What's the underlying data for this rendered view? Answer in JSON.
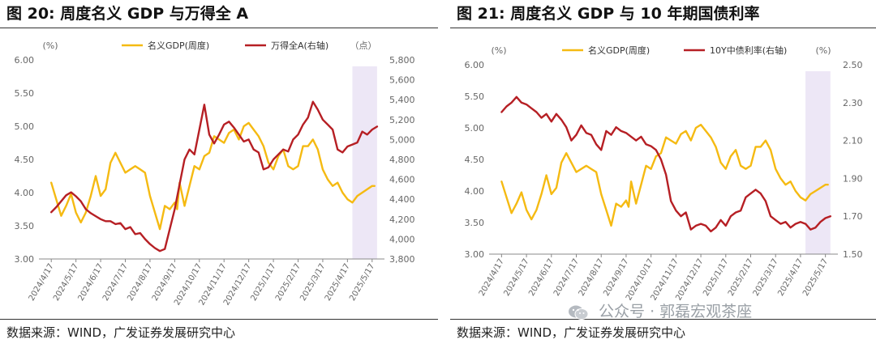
{
  "colors": {
    "gdp": "#F5BA12",
    "other": "#B61F24",
    "shade": "#EDE7F6",
    "axis": "#888888",
    "text": "#666666"
  },
  "watermark": {
    "text": "公众号 · 郭磊宏观茶座",
    "icon": "wechat-icon"
  },
  "chart_data": [
    {
      "type": "line",
      "title": "图 20: 周度名义 GDP 与万得全 A",
      "source": "数据来源：WIND，广发证券发展研究中心",
      "left_unit": "(%)",
      "right_unit": "（点）",
      "x_ticks": [
        "2024/4/17",
        "2024/5/17",
        "2024/6/17",
        "2024/7/17",
        "2024/8/17",
        "2024/9/17",
        "2024/10/17",
        "2024/11/17",
        "2024/12/17",
        "2025/1/17",
        "2025/2/17",
        "2025/3/17",
        "2025/4/17",
        "2025/5/17"
      ],
      "ylim_left": [
        3.0,
        6.0
      ],
      "y_ticks_left": [
        "3.00",
        "3.50",
        "4.00",
        "4.50",
        "5.00",
        "5.50",
        "6.00"
      ],
      "ylim_right": [
        3800,
        5800
      ],
      "y_ticks_right": [
        "3,800",
        "4,000",
        "4,200",
        "4,400",
        "4,600",
        "4,800",
        "5,000",
        "5,200",
        "5,400",
        "5,600",
        "5,800"
      ],
      "shade_range": [
        12.2,
        13.2
      ],
      "series": [
        {
          "name": "名义GDP(周度)",
          "axis": "left",
          "color": "#F5BA12",
          "x": [
            0,
            0.2,
            0.4,
            0.6,
            0.8,
            1.0,
            1.2,
            1.4,
            1.6,
            1.8,
            2.0,
            2.2,
            2.4,
            2.6,
            2.8,
            3.0,
            3.2,
            3.4,
            3.6,
            3.8,
            4.0,
            4.2,
            4.4,
            4.6,
            4.8,
            5.0,
            5.1,
            5.2,
            5.4,
            5.6,
            5.8,
            6.0,
            6.2,
            6.4,
            6.6,
            6.8,
            7.0,
            7.2,
            7.4,
            7.6,
            7.8,
            8.0,
            8.2,
            8.4,
            8.6,
            8.8,
            9.0,
            9.2,
            9.4,
            9.6,
            9.8,
            10.0,
            10.2,
            10.4,
            10.6,
            10.8,
            11.0,
            11.2,
            11.4,
            11.6,
            11.8,
            12.0,
            12.2,
            12.4,
            12.6,
            12.8,
            13.0,
            13.1
          ],
          "values": [
            4.15,
            3.9,
            3.65,
            3.8,
            3.98,
            3.7,
            3.55,
            3.7,
            3.95,
            4.25,
            3.95,
            4.05,
            4.45,
            4.6,
            4.45,
            4.3,
            4.35,
            4.4,
            4.35,
            4.3,
            3.95,
            3.7,
            3.45,
            3.8,
            3.75,
            3.85,
            3.75,
            4.15,
            3.8,
            4.1,
            4.4,
            4.35,
            4.55,
            4.6,
            4.85,
            4.8,
            4.75,
            4.9,
            4.95,
            4.8,
            5.0,
            5.05,
            4.95,
            4.85,
            4.7,
            4.45,
            4.35,
            4.55,
            4.65,
            4.4,
            4.35,
            4.4,
            4.7,
            4.7,
            4.8,
            4.65,
            4.35,
            4.2,
            4.1,
            4.15,
            4.0,
            3.9,
            3.85,
            3.95,
            4.0,
            4.05,
            4.1,
            4.1
          ]
        },
        {
          "name": "万得全A(右轴)",
          "axis": "right",
          "color": "#B61F24",
          "x": [
            0,
            0.2,
            0.4,
            0.6,
            0.8,
            1.0,
            1.2,
            1.4,
            1.6,
            1.8,
            2.0,
            2.2,
            2.4,
            2.6,
            2.8,
            3.0,
            3.2,
            3.4,
            3.6,
            3.8,
            4.0,
            4.2,
            4.4,
            4.6,
            4.8,
            5.0,
            5.2,
            5.4,
            5.6,
            5.8,
            6.0,
            6.2,
            6.4,
            6.6,
            6.8,
            7.0,
            7.2,
            7.4,
            7.6,
            7.8,
            8.0,
            8.2,
            8.4,
            8.6,
            8.8,
            9.0,
            9.2,
            9.4,
            9.6,
            9.8,
            10.0,
            10.2,
            10.4,
            10.6,
            10.8,
            11.0,
            11.2,
            11.4,
            11.6,
            11.8,
            12.0,
            12.2,
            12.4,
            12.6,
            12.8,
            13.0,
            13.2
          ],
          "values": [
            4270,
            4320,
            4380,
            4440,
            4470,
            4430,
            4380,
            4300,
            4260,
            4230,
            4200,
            4180,
            4180,
            4150,
            4160,
            4100,
            4120,
            4050,
            4060,
            4000,
            3950,
            3910,
            3880,
            3900,
            4100,
            4300,
            4550,
            4800,
            4900,
            4850,
            5100,
            5350,
            5050,
            4960,
            5050,
            5150,
            5180,
            5120,
            5050,
            4980,
            5000,
            4900,
            4870,
            4700,
            4720,
            4800,
            4850,
            4900,
            4880,
            5000,
            5050,
            5150,
            5220,
            5380,
            5300,
            5200,
            5150,
            5100,
            4900,
            4870,
            4930,
            4950,
            4970,
            5080,
            5050,
            5100,
            5130
          ]
        }
      ]
    },
    {
      "type": "line",
      "title": "图 21: 周度名义 GDP 与 10 年期国债利率",
      "source": "数据来源：WIND，广发证券发展研究中心",
      "left_unit": "(%)",
      "right_unit": "(%)",
      "x_ticks": [
        "2024/4/17",
        "2024/5/17",
        "2024/6/17",
        "2024/7/17",
        "2024/8/17",
        "2024/9/17",
        "2024/10/17",
        "2024/11/17",
        "2024/12/17",
        "2025/1/17",
        "2025/2/17",
        "2025/3/17",
        "2025/4/17",
        "2025/5/17"
      ],
      "ylim_left": [
        3.0,
        6.0
      ],
      "y_ticks_left": [
        "3.00",
        "3.50",
        "4.00",
        "4.50",
        "5.00",
        "5.50",
        "6.00"
      ],
      "ylim_right": [
        1.5,
        2.5
      ],
      "y_ticks_right": [
        "1.50",
        "1.70",
        "1.90",
        "2.10",
        "2.30",
        "2.50"
      ],
      "shade_range": [
        12.2,
        13.2
      ],
      "series": [
        {
          "name": "名义GDP(周度)",
          "axis": "left",
          "color": "#F5BA12",
          "x": [
            0,
            0.2,
            0.4,
            0.6,
            0.8,
            1.0,
            1.2,
            1.4,
            1.6,
            1.8,
            2.0,
            2.2,
            2.4,
            2.6,
            2.8,
            3.0,
            3.2,
            3.4,
            3.6,
            3.8,
            4.0,
            4.2,
            4.4,
            4.6,
            4.8,
            5.0,
            5.1,
            5.2,
            5.4,
            5.6,
            5.8,
            6.0,
            6.2,
            6.4,
            6.6,
            6.8,
            7.0,
            7.2,
            7.4,
            7.6,
            7.8,
            8.0,
            8.2,
            8.4,
            8.6,
            8.8,
            9.0,
            9.2,
            9.4,
            9.6,
            9.8,
            10.0,
            10.2,
            10.4,
            10.6,
            10.8,
            11.0,
            11.2,
            11.4,
            11.6,
            11.8,
            12.0,
            12.2,
            12.4,
            12.6,
            12.8,
            13.0,
            13.1
          ],
          "values": [
            4.15,
            3.9,
            3.65,
            3.8,
            3.98,
            3.7,
            3.55,
            3.7,
            3.95,
            4.25,
            3.95,
            4.05,
            4.45,
            4.6,
            4.45,
            4.3,
            4.35,
            4.4,
            4.35,
            4.3,
            3.95,
            3.7,
            3.45,
            3.8,
            3.75,
            3.85,
            3.75,
            4.15,
            3.8,
            4.1,
            4.4,
            4.35,
            4.55,
            4.6,
            4.85,
            4.8,
            4.75,
            4.9,
            4.95,
            4.8,
            5.0,
            5.05,
            4.95,
            4.85,
            4.7,
            4.45,
            4.35,
            4.55,
            4.65,
            4.4,
            4.35,
            4.4,
            4.7,
            4.7,
            4.8,
            4.65,
            4.35,
            4.2,
            4.1,
            4.15,
            4.0,
            3.9,
            3.85,
            3.95,
            4.0,
            4.05,
            4.1,
            4.1
          ]
        },
        {
          "name": "10Y中债利率(右轴)",
          "axis": "right",
          "color": "#B61F24",
          "x": [
            0,
            0.2,
            0.4,
            0.6,
            0.8,
            1.0,
            1.2,
            1.4,
            1.6,
            1.8,
            2.0,
            2.2,
            2.4,
            2.6,
            2.8,
            3.0,
            3.2,
            3.4,
            3.6,
            3.8,
            4.0,
            4.2,
            4.4,
            4.6,
            4.8,
            5.0,
            5.2,
            5.4,
            5.6,
            5.8,
            6.0,
            6.2,
            6.4,
            6.6,
            6.8,
            7.0,
            7.2,
            7.4,
            7.6,
            7.8,
            8.0,
            8.2,
            8.4,
            8.6,
            8.8,
            9.0,
            9.2,
            9.4,
            9.6,
            9.8,
            10.0,
            10.2,
            10.4,
            10.6,
            10.8,
            11.0,
            11.2,
            11.4,
            11.6,
            11.8,
            12.0,
            12.2,
            12.4,
            12.6,
            12.8,
            13.0,
            13.2
          ],
          "values": [
            2.25,
            2.28,
            2.3,
            2.33,
            2.3,
            2.29,
            2.27,
            2.25,
            2.22,
            2.24,
            2.2,
            2.24,
            2.21,
            2.17,
            2.1,
            2.13,
            2.18,
            2.14,
            2.13,
            2.08,
            2.05,
            2.15,
            2.13,
            2.17,
            2.15,
            2.14,
            2.12,
            2.1,
            2.12,
            2.08,
            2.07,
            2.05,
            2.0,
            1.92,
            1.78,
            1.73,
            1.7,
            1.72,
            1.63,
            1.65,
            1.66,
            1.65,
            1.62,
            1.64,
            1.68,
            1.65,
            1.7,
            1.72,
            1.73,
            1.8,
            1.82,
            1.84,
            1.82,
            1.78,
            1.7,
            1.68,
            1.66,
            1.67,
            1.64,
            1.66,
            1.67,
            1.66,
            1.63,
            1.64,
            1.67,
            1.69,
            1.7
          ]
        }
      ]
    }
  ]
}
